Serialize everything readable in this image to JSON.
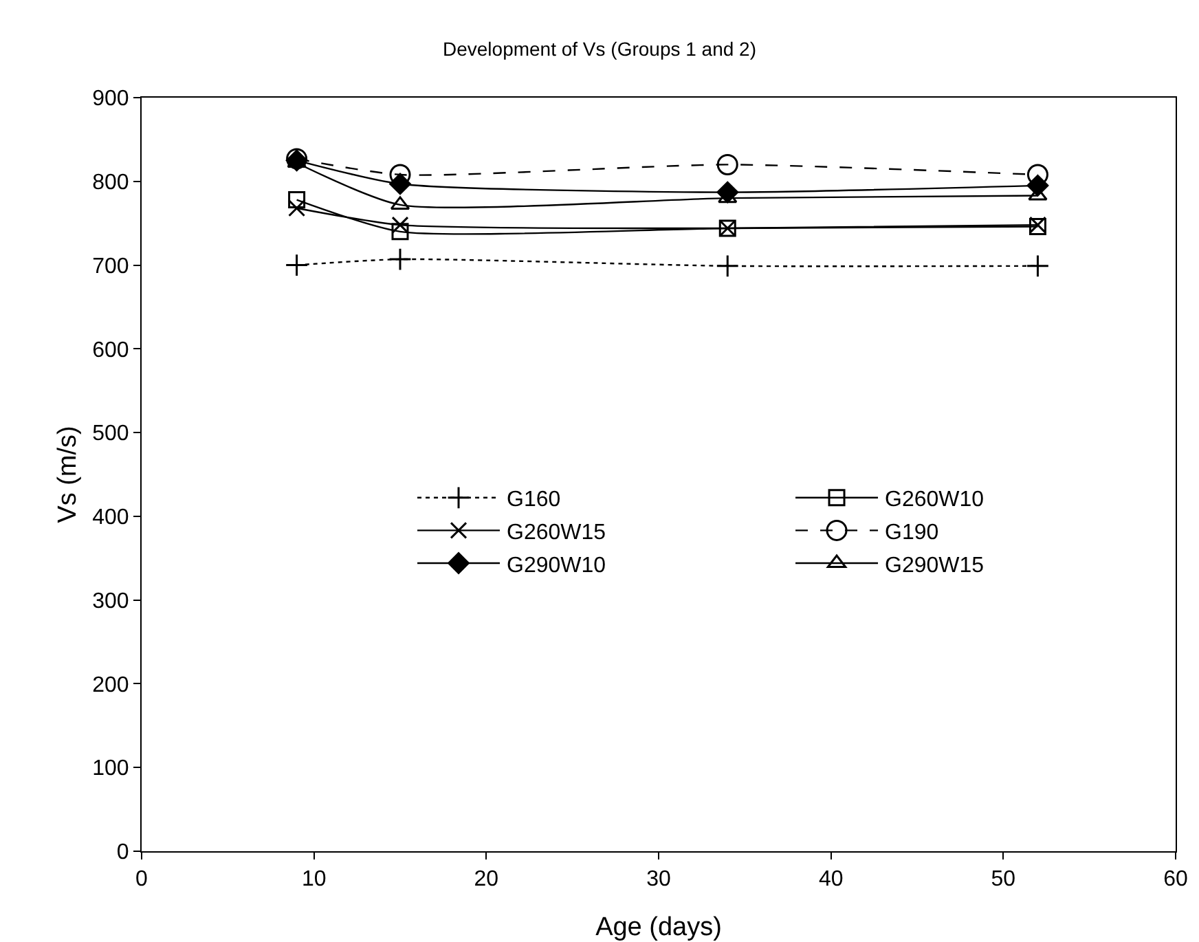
{
  "chart_data": {
    "type": "line",
    "title": "Development of Vs (Groups 1 and 2)",
    "xlabel": "Age (days)",
    "ylabel": "Vs (m/s)",
    "x": [
      9,
      15,
      34,
      52
    ],
    "xlim": [
      0,
      60
    ],
    "xticks": [
      0,
      10,
      20,
      30,
      40,
      50,
      60
    ],
    "ylim": [
      0,
      900
    ],
    "yticks": [
      0,
      100,
      200,
      300,
      400,
      500,
      600,
      700,
      800,
      900
    ],
    "grid": false,
    "legend": "center",
    "series": [
      {
        "name": "G160",
        "color": "#000000",
        "marker": "cross",
        "line_style": "dotted",
        "values": [
          700,
          707,
          699,
          699
        ]
      },
      {
        "name": "G260W10",
        "color": "#000000",
        "marker": "square",
        "line_style": "solid",
        "values": [
          778,
          740,
          744,
          746
        ]
      },
      {
        "name": "G260W15",
        "color": "#000000",
        "marker": "x",
        "line_style": "solid",
        "values": [
          768,
          748,
          744,
          748
        ]
      },
      {
        "name": "G190",
        "color": "#000000",
        "marker": "circle",
        "line_style": "dashed",
        "values": [
          827,
          808,
          820,
          808
        ]
      },
      {
        "name": "G290W10",
        "color": "#000000",
        "marker": "diamond",
        "line_style": "solid",
        "values": [
          825,
          797,
          787,
          795
        ]
      },
      {
        "name": "G290W15",
        "color": "#000000",
        "marker": "triangle",
        "line_style": "solid",
        "values": [
          822,
          772,
          780,
          783
        ]
      }
    ]
  }
}
